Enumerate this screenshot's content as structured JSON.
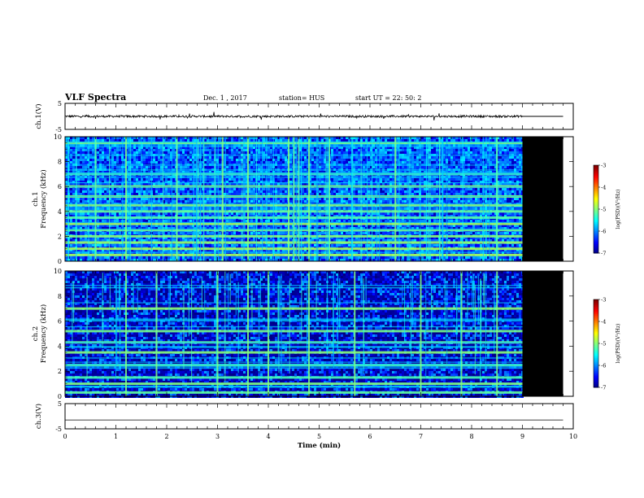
{
  "header": {
    "title": "VLF Spectra",
    "date": "Dec. 1 , 2017",
    "station": "station= HUS",
    "start": "start UT =   22: 50: 2"
  },
  "chart_data": [
    {
      "type": "line",
      "name": "ch1-waveform",
      "ylabel": "ch.1(V)",
      "xlim": [
        0,
        10
      ],
      "ylim": [
        -5,
        5
      ],
      "yticks": [
        "5",
        "-5"
      ],
      "trace_end_min": 9.0,
      "trace_level_v": 0,
      "flat_after_end_v": 0
    },
    {
      "type": "heatmap",
      "name": "ch1-spectrogram",
      "ylabel": "ch.1\nFrequency (kHz)",
      "xlim": [
        0,
        10
      ],
      "ylim": [
        0,
        10
      ],
      "yticks": [
        "0",
        "2",
        "4",
        "6",
        "8",
        "10"
      ],
      "data_end_min": 9.0,
      "colorbar": {
        "label": "log(PSD)(V²/Hz)",
        "ticks": [
          "-3",
          "-4",
          "-5",
          "-6",
          "-7"
        ],
        "range": [
          -7,
          -3
        ]
      },
      "strong_bands_khz": [
        0.5,
        1.0,
        1.5,
        2.0,
        2.5,
        3.0,
        3.5,
        4.0,
        4.5,
        5.2,
        6.0,
        7.0,
        9.5
      ],
      "bright_columns_min": [
        0.6,
        1.2,
        2.2,
        3.1,
        3.6,
        4.4,
        4.5,
        4.6,
        4.8,
        5.2,
        6.5,
        8.5
      ]
    },
    {
      "type": "heatmap",
      "name": "ch2-spectrogram",
      "ylabel": "ch.2\nFrequency (kHz)",
      "xlim": [
        0,
        10
      ],
      "ylim": [
        0,
        10
      ],
      "yticks": [
        "0",
        "2",
        "4",
        "6",
        "8",
        "10"
      ],
      "data_end_min": 9.0,
      "colorbar": {
        "label": "log(PSD)(V²/Hz)",
        "ticks": [
          "-3",
          "-4",
          "-5",
          "-6",
          "-7"
        ],
        "range": [
          -7,
          -3
        ]
      },
      "strong_bands_khz": [
        0.3,
        1.0,
        1.5,
        2.5,
        3.5,
        4.3,
        5.2,
        7.0
      ],
      "bright_columns_min": [
        1.2,
        1.8,
        3.0,
        3.6,
        4.0,
        4.8,
        5.7,
        7.0,
        7.8,
        8.5
      ]
    },
    {
      "type": "line",
      "name": "ch3-waveform",
      "ylabel": "ch.3(V)",
      "xlabel": "Time (min)",
      "xlim": [
        0,
        10
      ],
      "ylim": [
        -5,
        5
      ],
      "yticks": [
        "5",
        "-5"
      ],
      "xticks": [
        "0",
        "1",
        "2",
        "3",
        "4",
        "5",
        "6",
        "7",
        "8",
        "9",
        "10"
      ],
      "trace_level_v": -1.5
    }
  ]
}
